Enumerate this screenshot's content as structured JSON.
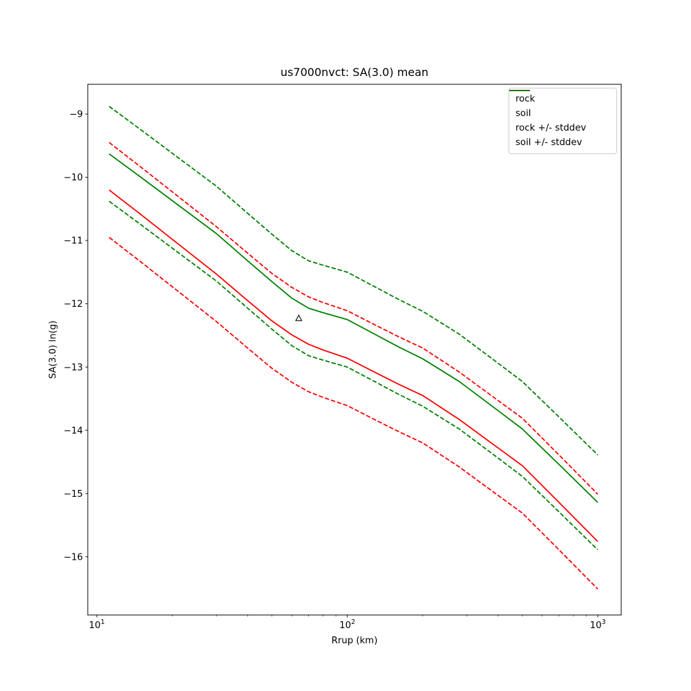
{
  "chart_data": {
    "type": "line",
    "title": "us7000nvct: SA(3.0) mean",
    "xlabel": "Rrup (km)",
    "ylabel": "SA(3.0) ln(g)",
    "x_scale": "log",
    "y_scale": "linear",
    "xlim": [
      9.2,
      1240
    ],
    "ylim": [
      -16.92,
      -8.53
    ],
    "xticks_exponents": [
      1,
      2,
      3
    ],
    "yticks": [
      -9,
      -10,
      -11,
      -12,
      -13,
      -14,
      -15,
      -16
    ],
    "grid": false,
    "x": [
      11.2,
      15,
      20,
      30,
      40,
      50,
      60,
      70,
      80,
      100,
      130,
      160,
      200,
      280,
      400,
      500,
      700,
      1000
    ],
    "series": [
      {
        "name": "rock",
        "color": "#ff0000",
        "style": "solid",
        "values": [
          -10.2,
          -10.59,
          -10.98,
          -11.53,
          -11.95,
          -12.27,
          -12.49,
          -12.64,
          -12.73,
          -12.86,
          -13.09,
          -13.27,
          -13.45,
          -13.83,
          -14.28,
          -14.56,
          -15.14,
          -15.76
        ]
      },
      {
        "name": "soil",
        "color": "#008000",
        "style": "solid",
        "values": [
          -9.63,
          -10.0,
          -10.37,
          -10.89,
          -11.32,
          -11.65,
          -11.91,
          -12.07,
          -12.14,
          -12.25,
          -12.49,
          -12.68,
          -12.87,
          -13.23,
          -13.69,
          -13.98,
          -14.54,
          -15.14
        ]
      },
      {
        "name": "rock +/- stddev",
        "color": "#ff0000",
        "style": "dashed",
        "derived_from": "rock",
        "stddev": 0.75
      },
      {
        "name": "soil +/- stddev",
        "color": "#008000",
        "style": "dashed",
        "derived_from": "soil",
        "stddev": 0.75
      }
    ],
    "marker": {
      "x": 64,
      "y": -12.23,
      "symbol": "triangle-up",
      "fill": "#ffffff",
      "edge_color": "#000000"
    },
    "legend": {
      "position": "upper right",
      "entries": [
        {
          "label": "rock",
          "color": "#ff0000",
          "style": "solid"
        },
        {
          "label": "soil",
          "color": "#008000",
          "style": "solid"
        },
        {
          "label": "rock +/- stddev",
          "color": "#ff0000",
          "style": "dashed"
        },
        {
          "label": "soil +/- stddev",
          "color": "#008000",
          "style": "dashed"
        }
      ]
    },
    "colors": {
      "axes": "#000000",
      "background": "#ffffff",
      "legend_border": "#cccccc"
    }
  }
}
